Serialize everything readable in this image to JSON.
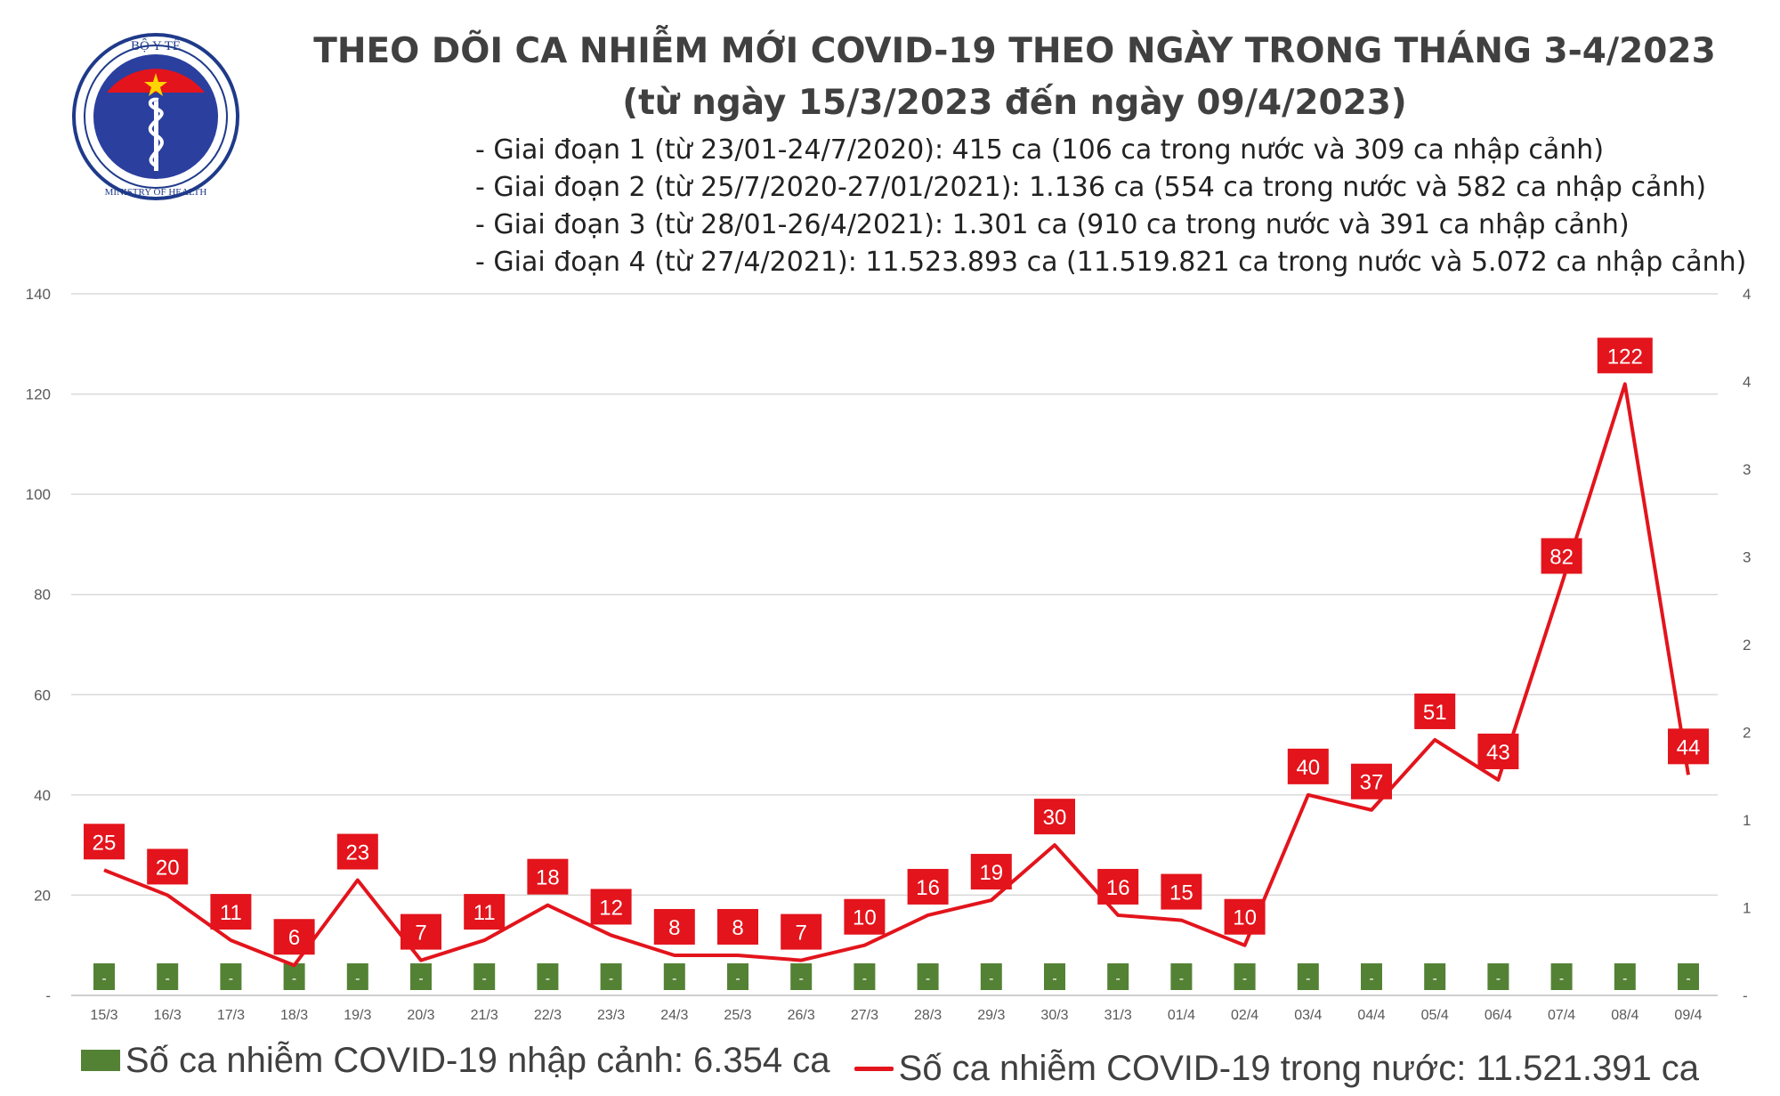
{
  "header": {
    "title": "THEO DÕI CA NHIỄM MỚI COVID-19 THEO NGÀY TRONG THÁNG 3-4/2023",
    "subtitle": "(từ ngày 15/3/2023 đến ngày 09/4/2023)",
    "phases": [
      "- Giai đoạn 1 (từ 23/01-24/7/2020): 415 ca (106 ca trong nước và 309 ca nhập cảnh)",
      "- Giai đoạn 2 (từ 25/7/2020-27/01/2021): 1.136 ca (554 ca trong nước và 582 ca nhập cảnh)",
      "- Giai đoạn 3 (từ 28/01-26/4/2021): 1.301 ca (910 ca trong nước và 391 ca nhập cảnh)",
      "- Giai đoạn 4 (từ 27/4/2021): 11.523.893 ca (11.519.821 ca trong nước và 5.072 ca nhập cảnh)"
    ]
  },
  "logo": {
    "top_text": "BỘ Y TẾ",
    "bottom_text": "MINISTRY OF HEALTH",
    "icon": "ministry-of-health-emblem-icon"
  },
  "chart_data": {
    "type": "line",
    "categories": [
      "15/3",
      "16/3",
      "17/3",
      "18/3",
      "19/3",
      "20/3",
      "21/3",
      "22/3",
      "23/3",
      "24/3",
      "25/3",
      "26/3",
      "27/3",
      "28/3",
      "29/3",
      "30/3",
      "31/3",
      "01/4",
      "02/4",
      "03/4",
      "04/4",
      "05/4",
      "06/4",
      "07/4",
      "08/4",
      "09/4"
    ],
    "series": [
      {
        "name": "Số ca nhiễm COVID-19 trong nước: 11.521.391 ca",
        "type": "line",
        "axis": "left",
        "color": "#e3141c",
        "values": [
          25,
          20,
          11,
          6,
          23,
          7,
          11,
          18,
          12,
          8,
          8,
          7,
          10,
          16,
          19,
          30,
          16,
          15,
          10,
          40,
          37,
          51,
          43,
          82,
          122,
          44
        ]
      },
      {
        "name": "Số ca nhiễm COVID-19 nhập cảnh: 6.354 ca",
        "type": "bar",
        "axis": "right",
        "color": "#548235",
        "values": [
          0,
          0,
          0,
          0,
          0,
          0,
          0,
          0,
          0,
          0,
          0,
          0,
          0,
          0,
          0,
          0,
          0,
          0,
          0,
          0,
          0,
          0,
          0,
          0,
          0,
          0
        ],
        "data_labels": [
          "-",
          "-",
          "-",
          "-",
          "-",
          "-",
          "-",
          "-",
          "-",
          "-",
          "-",
          "-",
          "-",
          "-",
          "-",
          "-",
          "-",
          "-",
          "-",
          "-",
          "-",
          "-",
          "-",
          "-",
          "-",
          "-"
        ]
      }
    ],
    "y_left": {
      "ylim": [
        0,
        140
      ],
      "ticks": [
        "-",
        "20",
        "40",
        "60",
        "80",
        "100",
        "120",
        "140"
      ]
    },
    "y_right": {
      "ticks": [
        "-",
        "1",
        "1",
        "2",
        "2",
        "3",
        "3",
        "4",
        "4"
      ]
    },
    "grid": true,
    "legend": "bottom-center"
  }
}
